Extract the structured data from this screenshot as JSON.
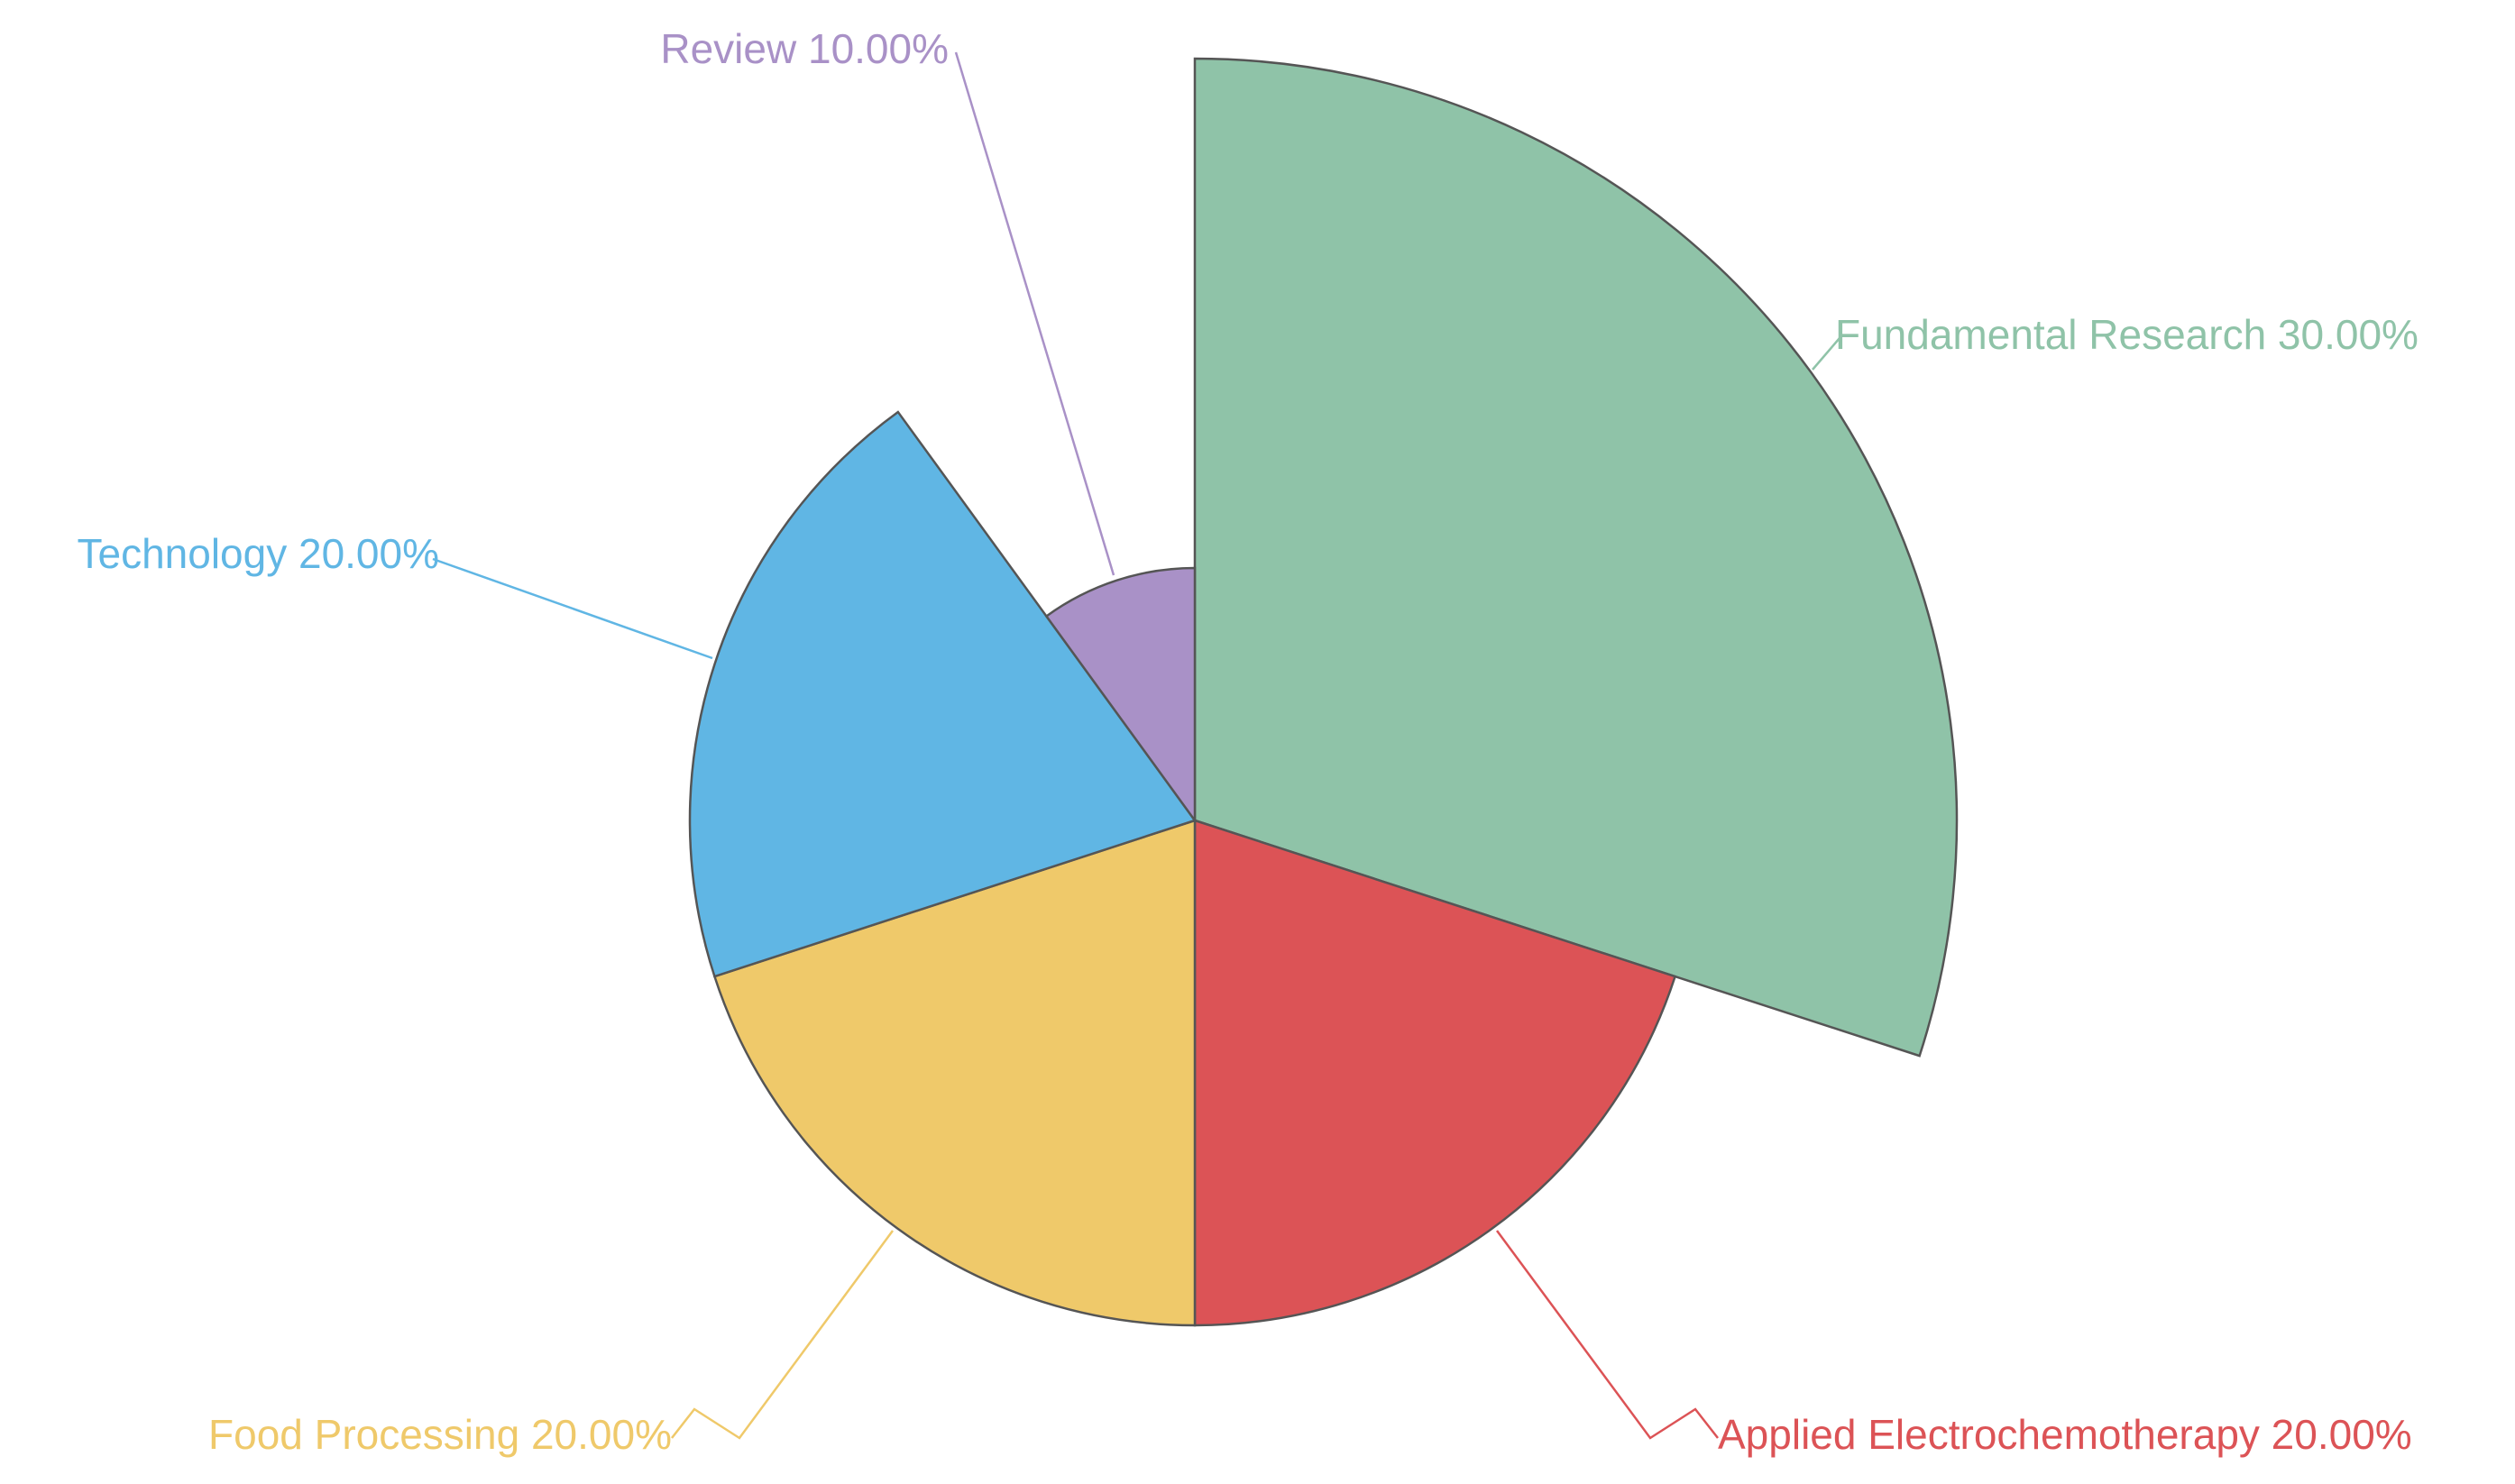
{
  "chart_data": {
    "type": "pie",
    "variant": "rose",
    "title": "",
    "slices": [
      {
        "label": "Fundamental Research",
        "value": 30,
        "percent": "30.00%",
        "color": "#8FC3A8"
      },
      {
        "label": "Applied Electrochemotherapy",
        "value": 20,
        "percent": "20.00%",
        "color": "#DC5356"
      },
      {
        "label": "Food Processing",
        "value": 20,
        "percent": "20.00%",
        "color": "#EFC96A"
      },
      {
        "label": "Technology",
        "value": 20,
        "percent": "20.00%",
        "color": "#60B6E4"
      },
      {
        "label": "Review",
        "value": 10,
        "percent": "10.00%",
        "color": "#A991C7"
      }
    ]
  }
}
